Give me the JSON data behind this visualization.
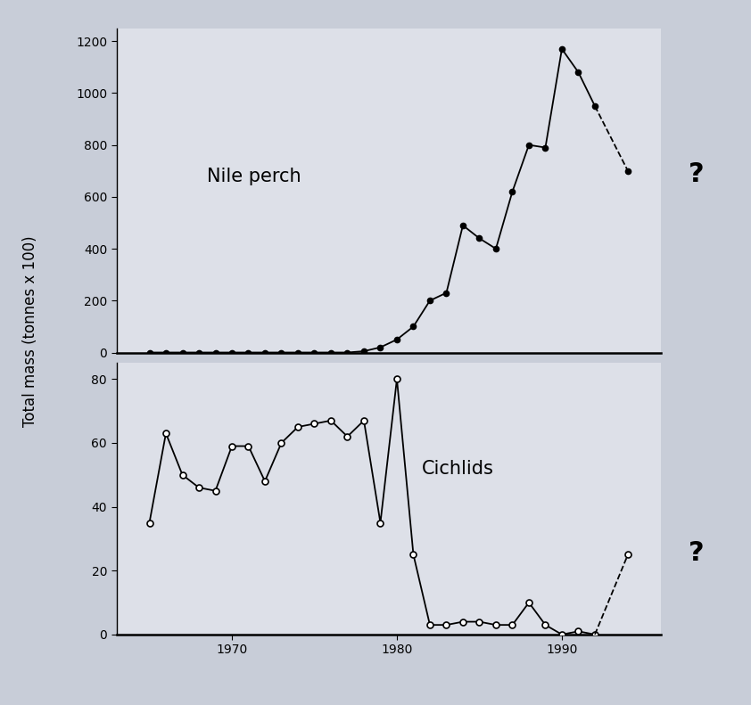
{
  "nile_perch_years": [
    1965,
    1966,
    1967,
    1968,
    1969,
    1970,
    1971,
    1972,
    1973,
    1974,
    1975,
    1976,
    1977,
    1978,
    1979,
    1980,
    1981,
    1982,
    1983,
    1984,
    1985,
    1986,
    1987,
    1988,
    1989,
    1990,
    1991,
    1992
  ],
  "nile_perch_values": [
    0,
    0,
    0,
    0,
    0,
    0,
    0,
    0,
    0,
    0,
    0,
    0,
    0,
    5,
    20,
    50,
    100,
    200,
    230,
    490,
    440,
    400,
    620,
    800,
    790,
    1170,
    1080,
    950
  ],
  "nile_perch_dashed_years": [
    1992,
    1994
  ],
  "nile_perch_dashed_values": [
    950,
    700
  ],
  "cichlids_years": [
    1965,
    1966,
    1967,
    1968,
    1969,
    1970,
    1971,
    1972,
    1973,
    1974,
    1975,
    1976,
    1977,
    1978,
    1979,
    1980,
    1981,
    1982,
    1983,
    1984,
    1985,
    1986,
    1987,
    1988,
    1989,
    1990,
    1991,
    1992
  ],
  "cichlids_values": [
    35,
    63,
    50,
    46,
    45,
    59,
    59,
    48,
    60,
    65,
    66,
    67,
    62,
    67,
    35,
    80,
    25,
    3,
    3,
    4,
    4,
    3,
    3,
    10,
    3,
    0,
    1,
    0
  ],
  "cichlids_dashed_years": [
    1992,
    1994
  ],
  "cichlids_dashed_values": [
    0,
    25
  ],
  "ylabel": "Total mass (tonnes x 100)",
  "nile_perch_label": "Nile perch",
  "cichlids_label": "Cichlids",
  "question_mark": "?",
  "outer_bg_color": "#c8cdd8",
  "plot_bg_color": "#dde0e8",
  "x_ticks": [
    1970,
    1980,
    1990
  ],
  "nile_perch_ylim": [
    0,
    1250
  ],
  "nile_perch_yticks": [
    0,
    200,
    400,
    600,
    800,
    1000,
    1200
  ],
  "cichlids_ylim": [
    0,
    85
  ],
  "cichlids_yticks": [
    0,
    20,
    40,
    60,
    80
  ],
  "xlim": [
    1963,
    1996
  ]
}
